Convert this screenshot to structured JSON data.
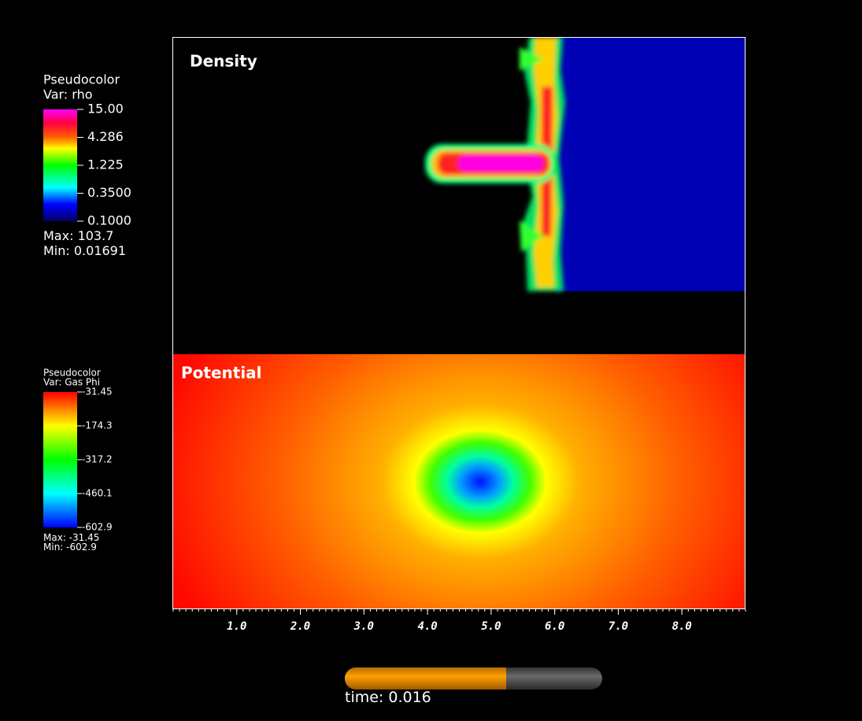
{
  "panels": [
    {
      "title": "Density"
    },
    {
      "title": "Potential"
    }
  ],
  "legends": [
    {
      "title": "Pseudocolor",
      "var": "Var: rho",
      "scale": "log",
      "ticks": [
        {
          "value": 15,
          "label": "15.00"
        },
        4.286,
        1.225,
        {
          "value": 0.35,
          "label": "0.3500"
        },
        {
          "value": 0.1,
          "label": "0.1000"
        }
      ],
      "range": [
        0.1,
        15
      ],
      "max_label": "Max:",
      "max": 103.7,
      "min_label": "Min:",
      "min": 0.01691
    },
    {
      "title": "Pseudocolor",
      "var": "Var: Gas Phi",
      "scale": "linear",
      "ticks": [
        -31.45,
        -174.3,
        -317.2,
        -460.1,
        -602.9
      ],
      "range": [
        -602.9,
        -31.45
      ],
      "max_label": "Max:",
      "max": -31.45,
      "min_label": "Min:",
      "min": -602.9
    }
  ],
  "x_axis": {
    "xlim": [
      0,
      9
    ],
    "xticks": [
      {
        "value": 1,
        "label": "1.0"
      },
      {
        "value": 2,
        "label": "2.0"
      },
      {
        "value": 3,
        "label": "3.0"
      },
      {
        "value": 4,
        "label": "4.0"
      },
      {
        "value": 5,
        "label": "5.0"
      },
      {
        "value": 6,
        "label": "6.0"
      },
      {
        "value": 7,
        "label": "7.0"
      },
      {
        "value": 8,
        "label": "8.0"
      }
    ]
  },
  "time": {
    "label": "time:",
    "value": 0.016,
    "progress": 0.627
  }
}
